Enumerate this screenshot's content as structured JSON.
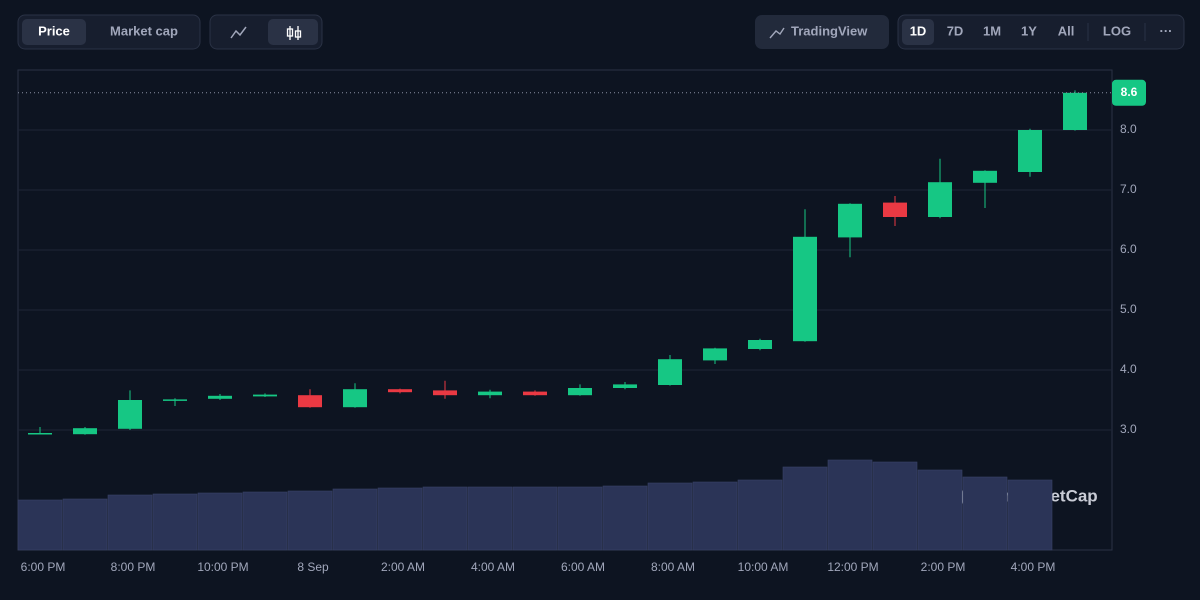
{
  "toolbar": {
    "tabs": [
      "Price",
      "Market cap"
    ],
    "tradingview": "TradingView",
    "ranges": [
      "1D",
      "7D",
      "1M",
      "1Y",
      "All"
    ],
    "log": "LOG",
    "more": "···"
  },
  "chart_data": {
    "type": "candlestick",
    "categories": [
      "6:00 PM",
      null,
      "8:00 PM",
      null,
      "10:00 PM",
      null,
      "8 Sep",
      null,
      "2:00 AM",
      null,
      "4:00 AM",
      null,
      "6:00 AM",
      null,
      "8:00 AM",
      null,
      "10:00 AM",
      null,
      "12:00 PM",
      null,
      "2:00 PM",
      null,
      "4:00 PM",
      null
    ],
    "open": [
      2.94,
      2.93,
      3.02,
      3.49,
      3.52,
      3.56,
      3.58,
      3.38,
      3.68,
      3.66,
      3.58,
      3.64,
      3.58,
      3.7,
      3.75,
      4.16,
      4.35,
      4.48,
      6.21,
      6.79,
      6.55,
      7.12,
      7.3,
      8.0
    ],
    "high": [
      3.05,
      3.05,
      3.66,
      3.53,
      3.6,
      3.61,
      3.68,
      3.78,
      3.69,
      3.82,
      3.67,
      3.66,
      3.76,
      3.8,
      4.25,
      4.37,
      4.52,
      6.68,
      6.78,
      6.9,
      7.52,
      7.33,
      8.02,
      8.66
    ],
    "low": [
      2.93,
      2.92,
      3.0,
      3.4,
      3.5,
      3.55,
      3.37,
      3.37,
      3.61,
      3.52,
      3.53,
      3.57,
      3.57,
      3.68,
      3.74,
      4.1,
      4.33,
      4.47,
      5.88,
      6.4,
      6.53,
      6.7,
      7.22,
      7.99
    ],
    "close": [
      2.95,
      3.03,
      3.5,
      3.51,
      3.57,
      3.59,
      3.38,
      3.68,
      3.63,
      3.58,
      3.64,
      3.58,
      3.7,
      3.76,
      4.18,
      4.36,
      4.5,
      6.22,
      6.77,
      6.55,
      7.13,
      7.32,
      8.0,
      8.62
    ],
    "up_color": "#16c784",
    "down_color": "#ea3943",
    "volume": [
      50,
      51,
      55,
      56,
      57,
      58,
      59,
      61,
      62,
      63,
      63,
      63,
      63,
      64,
      67,
      68,
      70,
      83,
      90,
      88,
      80,
      73,
      70,
      null
    ],
    "volume_color": "#2b3457",
    "vlim": [
      0,
      100
    ],
    "ylim": [
      1,
      9
    ],
    "yticks": [
      {
        "value": 3,
        "label": "3.0"
      },
      {
        "value": 4,
        "label": "4.0"
      },
      {
        "value": 5,
        "label": "5.0"
      },
      {
        "value": 6,
        "label": "6.0"
      },
      {
        "value": 7,
        "label": "7.0"
      },
      {
        "value": 8,
        "label": "8.0"
      }
    ],
    "grid": true,
    "last_price": {
      "value": 8.62,
      "label": "8.6"
    },
    "watermark": "CoinMarketCap"
  }
}
